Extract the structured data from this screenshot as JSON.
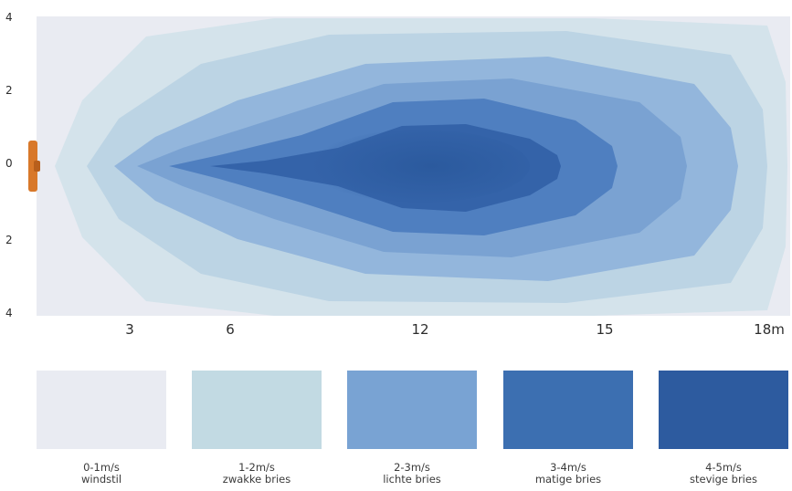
{
  "chart_data": {
    "type": "heatmap",
    "title": "",
    "xlabel": "",
    "ylabel": "",
    "x_ticks": [
      "3",
      "6",
      "12",
      "15",
      "18m"
    ],
    "y_ticks": [
      "4",
      "2",
      "0",
      "2",
      "4"
    ],
    "legend": [
      {
        "range": "0-1m/s",
        "label": "windstil",
        "color": "#e9ebf2"
      },
      {
        "range": "1-2m/s",
        "label": "zwakke bries",
        "color": "#c2dae3"
      },
      {
        "range": "2-3m/s",
        "label": "lichte bries",
        "color": "#79a3d3"
      },
      {
        "range": "3-4m/s",
        "label": "matige bries",
        "color": "#3c6fb1"
      },
      {
        "range": "4-5m/s",
        "label": "stevige bries",
        "color": "#2d5b9f"
      }
    ],
    "source_marker": {
      "label": "",
      "color": "#d8782a"
    }
  }
}
